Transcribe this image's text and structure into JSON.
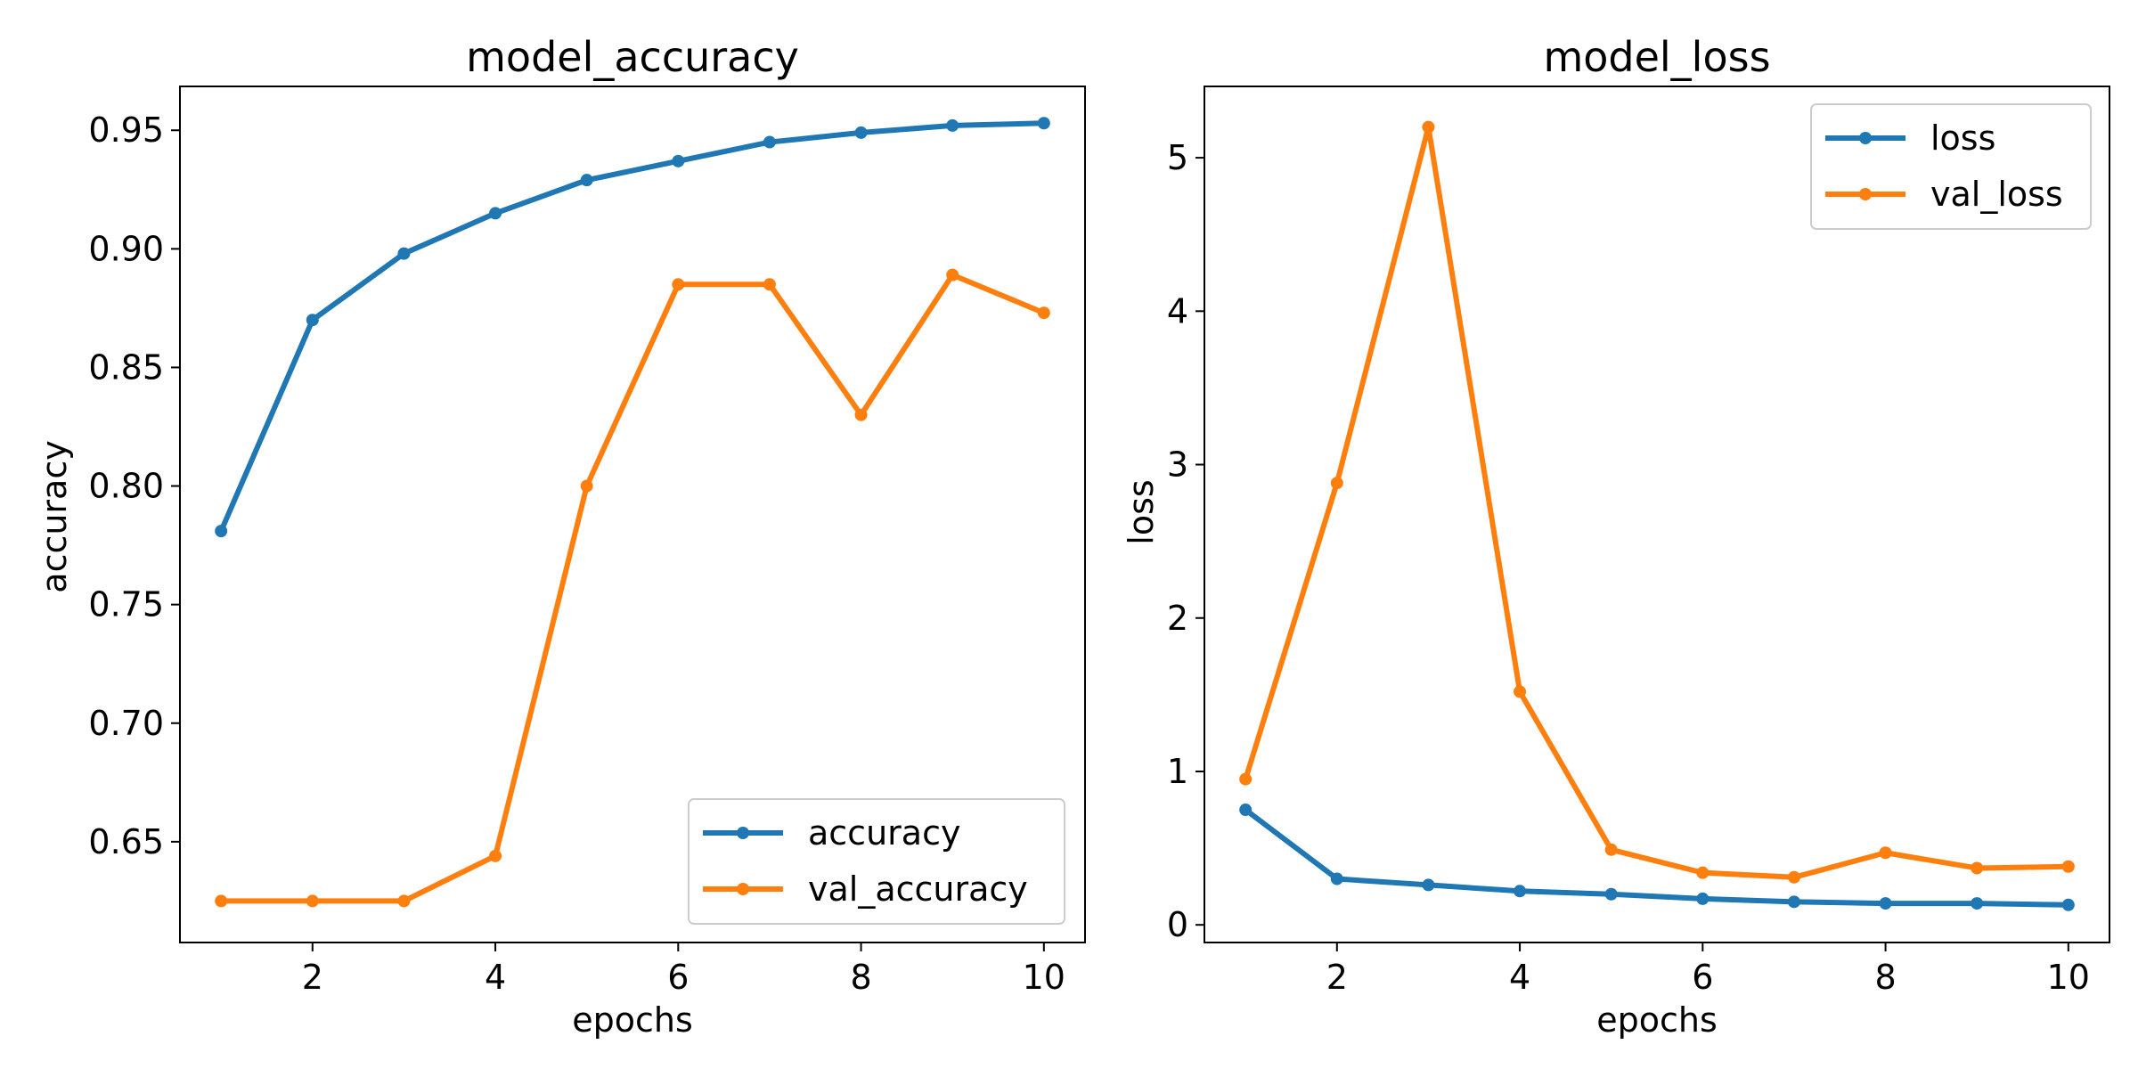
{
  "figure": {
    "background": "#ffffff",
    "text_color": "#000000"
  },
  "chart_data": [
    {
      "type": "line",
      "title": "model_accuracy",
      "xlabel": "epochs",
      "ylabel": "accuracy",
      "x": [
        1,
        2,
        3,
        4,
        5,
        6,
        7,
        8,
        9,
        10
      ],
      "xlim": [
        0.55,
        10.45
      ],
      "ylim": [
        0.6075,
        0.9685
      ],
      "xticks": [
        2,
        4,
        6,
        8,
        10
      ],
      "xtick_labels": [
        "2",
        "4",
        "6",
        "8",
        "10"
      ],
      "yticks": [
        0.65,
        0.7,
        0.75,
        0.8,
        0.85,
        0.9,
        0.95
      ],
      "ytick_labels": [
        "0.65",
        "0.70",
        "0.75",
        "0.80",
        "0.85",
        "0.90",
        "0.95"
      ],
      "grid": false,
      "legend_position": "lower-right",
      "series": [
        {
          "name": "accuracy",
          "color": "#1f77b4",
          "marker": "circle",
          "values": [
            0.781,
            0.87,
            0.898,
            0.915,
            0.929,
            0.937,
            0.945,
            0.949,
            0.952,
            0.953
          ]
        },
        {
          "name": "val_accuracy",
          "color": "#ff7f0e",
          "marker": "circle",
          "values": [
            0.625,
            0.625,
            0.625,
            0.644,
            0.8,
            0.885,
            0.885,
            0.83,
            0.889,
            0.873
          ]
        }
      ]
    },
    {
      "type": "line",
      "title": "model_loss",
      "xlabel": "epochs",
      "ylabel": "loss",
      "x": [
        1,
        2,
        3,
        4,
        5,
        6,
        7,
        8,
        9,
        10
      ],
      "xlim": [
        0.55,
        10.45
      ],
      "ylim": [
        -0.115,
        5.465
      ],
      "xticks": [
        2,
        4,
        6,
        8,
        10
      ],
      "xtick_labels": [
        "2",
        "4",
        "6",
        "8",
        "10"
      ],
      "yticks": [
        0,
        1,
        2,
        3,
        4,
        5
      ],
      "ytick_labels": [
        "0",
        "1",
        "2",
        "3",
        "4",
        "5"
      ],
      "grid": false,
      "legend_position": "upper-right",
      "series": [
        {
          "name": "loss",
          "color": "#1f77b4",
          "marker": "circle",
          "values": [
            0.75,
            0.3,
            0.26,
            0.22,
            0.2,
            0.17,
            0.15,
            0.14,
            0.14,
            0.13
          ]
        },
        {
          "name": "val_loss",
          "color": "#ff7f0e",
          "marker": "circle",
          "values": [
            0.95,
            2.88,
            5.2,
            1.52,
            0.49,
            0.34,
            0.31,
            0.47,
            0.37,
            0.38
          ]
        }
      ]
    }
  ]
}
